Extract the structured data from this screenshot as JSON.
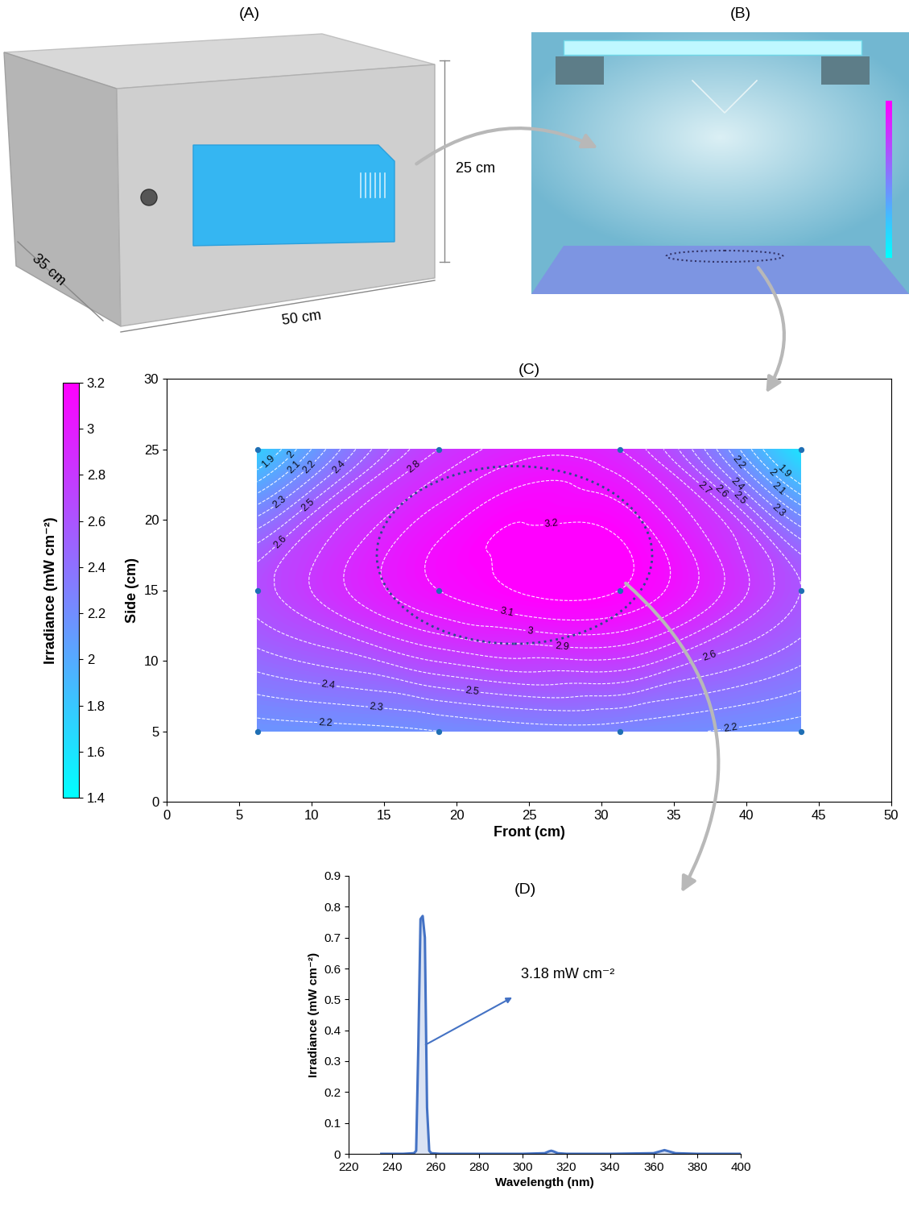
{
  "chart_data": [
    {
      "type": "diagram",
      "title": "(A)",
      "dimensions": [
        "35 cm",
        "50 cm",
        "25 cm"
      ]
    },
    {
      "type": "diagram",
      "title": "(B)"
    },
    {
      "type": "contour",
      "title": "(C)",
      "x_label": "Front (cm)",
      "y_label": "Side (cm)",
      "xlim": [
        0,
        50
      ],
      "ylim": [
        0,
        30
      ],
      "xticks": [
        0,
        5,
        10,
        15,
        20,
        25,
        30,
        35,
        40,
        45,
        50
      ],
      "yticks": [
        0,
        5,
        10,
        15,
        20,
        25,
        30
      ],
      "x": [
        6.25,
        18.75,
        31.25,
        43.75
      ],
      "y": [
        5,
        15,
        25
      ],
      "values": [
        [
          2.15,
          2.2,
          2.25,
          2.15
        ],
        [
          2.65,
          3.1,
          3.2,
          2.6
        ],
        [
          1.75,
          2.8,
          2.9,
          1.6
        ]
      ],
      "levels": [
        1.9,
        2,
        2.1,
        2.2,
        2.3,
        2.4,
        2.5,
        2.6,
        2.7,
        2.8,
        2.9,
        3,
        3.1,
        3.2
      ],
      "colorbar": {
        "label": "Irradiance (mW cm⁻²)",
        "range": [
          1.4,
          3.2
        ],
        "ticks": [
          1.4,
          1.6,
          1.8,
          2,
          2.2,
          2.4,
          2.6,
          2.8,
          3,
          3.2
        ]
      }
    },
    {
      "type": "line",
      "title": "(D)",
      "x_label": "Wavelength (nm)",
      "y_label": "Irradiance (mW cm⁻²)",
      "color": "#4472c4",
      "x": [
        235,
        245,
        250,
        251,
        252,
        253,
        254,
        255,
        256,
        257,
        258,
        262,
        280,
        300,
        310,
        312,
        313,
        314,
        316,
        320,
        340,
        360,
        363,
        365,
        367,
        370,
        380,
        400
      ],
      "values": [
        0,
        0,
        0.002,
        0.01,
        0.35,
        0.76,
        0.77,
        0.7,
        0.15,
        0.01,
        0.002,
        0,
        0,
        0,
        0.002,
        0.008,
        0.01,
        0.008,
        0.002,
        0,
        0,
        0.002,
        0.008,
        0.012,
        0.008,
        0.002,
        0,
        0
      ],
      "xlim": [
        220,
        400
      ],
      "ylim": [
        0,
        0.9
      ],
      "xticks": [
        220,
        240,
        260,
        280,
        300,
        320,
        340,
        360,
        380,
        400
      ],
      "yticks": [
        0,
        0.1,
        0.2,
        0.3,
        0.4,
        0.5,
        0.6,
        0.7,
        0.8,
        0.9
      ],
      "annotations": [
        "3.18 mW cm⁻²"
      ]
    }
  ]
}
